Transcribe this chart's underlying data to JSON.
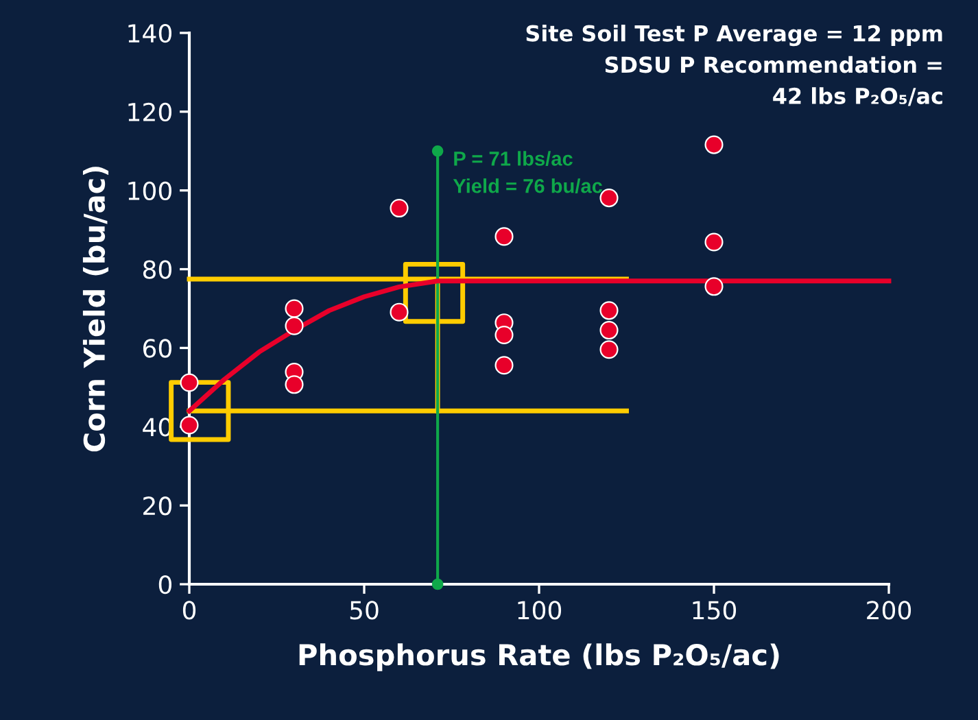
{
  "chart_data": {
    "type": "scatter",
    "xlabel": "Phosphorus Rate (lbs P₂O₅/ac)",
    "ylabel": "Corn Yield (bu/ac)",
    "xlim": [
      0,
      200
    ],
    "xticks": [
      0,
      50,
      100,
      150,
      200
    ],
    "ylim": [
      0,
      140
    ],
    "yticks": [
      0,
      20,
      40,
      60,
      80,
      100,
      120,
      140
    ],
    "grid": false,
    "legend": false,
    "series": [
      {
        "type": "line",
        "color": "#ffcc00",
        "marker": "none",
        "x": [
          0,
          125
        ],
        "values": [
          77.5,
          77.5
        ]
      },
      {
        "type": "line",
        "color": "#ffcc00",
        "marker": "none",
        "x": [
          0,
          125
        ],
        "values": [
          44,
          44
        ]
      },
      {
        "type": "line",
        "color": "#ffcc00",
        "marker": "none",
        "x": [
          71,
          71
        ],
        "values": [
          44,
          77
        ]
      },
      {
        "type": "scatter",
        "color": "#ffcc00",
        "marker": "square",
        "x": [
          3,
          70
        ],
        "values": [
          44,
          74
        ]
      },
      {
        "type": "line",
        "color": "#0fa84a",
        "marker": "circle",
        "x": [
          71,
          71
        ],
        "values": [
          0,
          110
        ]
      },
      {
        "type": "line",
        "color": "#e8002a",
        "marker": "none",
        "x": [
          0,
          10,
          20,
          30,
          40,
          50,
          60,
          71,
          200
        ],
        "values": [
          44,
          52,
          59,
          64.5,
          69.5,
          73,
          75.5,
          77,
          77
        ]
      },
      {
        "color": "#e8002a",
        "marker": "circle",
        "x": [
          0,
          0,
          30,
          30,
          30,
          30,
          60,
          60,
          90,
          90,
          90,
          90,
          120,
          120,
          120,
          120,
          150,
          150,
          150
        ],
        "values": [
          51.2,
          40.4,
          70,
          65.6,
          53.9,
          50.7,
          95.5,
          69.1,
          88.3,
          66.4,
          63.3,
          55.6,
          98.1,
          69.5,
          64.5,
          59.6,
          111.6,
          86.9,
          75.6
        ]
      }
    ],
    "annotations": [
      {
        "text": "P = 71 lbs/ac\nYield = 76 bu/ac",
        "x": 71,
        "y": 110
      },
      "Site Soil Test P Average = 12 ppm\nSDSU P Recommendation =\n42 lbs P₂O₅/ac"
    ]
  }
}
